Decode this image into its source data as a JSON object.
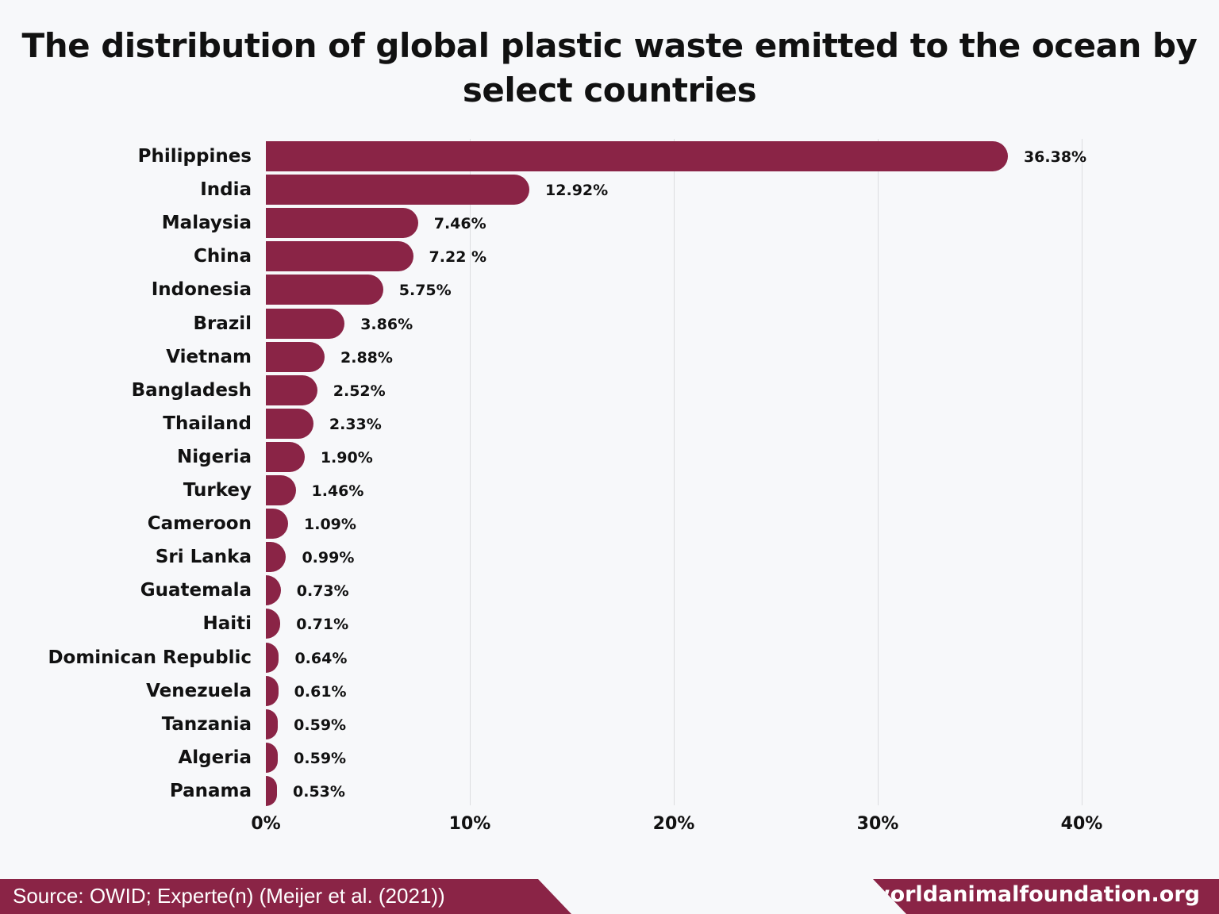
{
  "chart_data": {
    "type": "bar",
    "orientation": "horizontal",
    "title": "The distribution of global plastic waste emitted to the ocean by select countries",
    "xlabel": "",
    "ylabel": "",
    "xlim": [
      0,
      40
    ],
    "x_ticks": [
      "0%",
      "10%",
      "20%",
      "30%",
      "40%"
    ],
    "grid": "vertical",
    "categories": [
      "Philippines",
      "India",
      "Malaysia",
      "China",
      "Indonesia",
      "Brazil",
      "Vietnam",
      "Bangladesh",
      "Thailand",
      "Nigeria",
      "Turkey",
      "Cameroon",
      "Sri Lanka",
      "Guatemala",
      "Haiti",
      "Dominican Republic",
      "Venezuela",
      "Tanzania",
      "Algeria",
      "Panama"
    ],
    "values": [
      36.38,
      12.92,
      7.46,
      7.22,
      5.75,
      3.86,
      2.88,
      2.52,
      2.33,
      1.9,
      1.46,
      1.09,
      0.99,
      0.73,
      0.71,
      0.64,
      0.61,
      0.59,
      0.59,
      0.53
    ],
    "labels": [
      "36.38%",
      "12.92%",
      "7.46%",
      "7.22 %",
      "5.75%",
      "3.86%",
      "2.88%",
      "2.52%",
      "2.33%",
      "1.90%",
      "1.46%",
      "1.09%",
      "0.99%",
      "0.73%",
      "0.71%",
      "0.64%",
      "0.61%",
      "0.59%",
      "0.59%",
      "0.53%"
    ],
    "bar_color": "#8a2446"
  },
  "footer": {
    "source": "Source: OWID; Experte(n) (Meijer et al. (2021))",
    "site": "worldanimalfoundation.org"
  }
}
